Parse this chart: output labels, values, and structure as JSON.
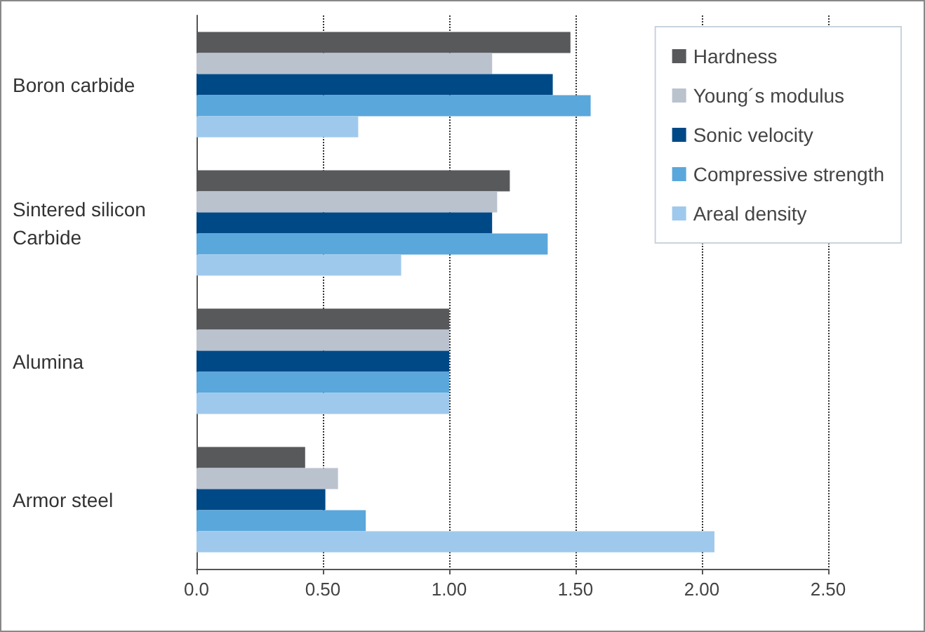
{
  "chart_data": {
    "type": "bar",
    "orientation": "horizontal",
    "categories": [
      "Boron carbide",
      "Sintered silicon Carbide",
      "Alumina",
      "Armor steel"
    ],
    "series": [
      {
        "name": "Hardness",
        "color": "#58595b",
        "values": [
          1.48,
          1.24,
          1.0,
          0.43
        ]
      },
      {
        "name": "Young´s modulus",
        "color": "#bac2ce",
        "values": [
          1.17,
          1.19,
          1.0,
          0.56
        ]
      },
      {
        "name": "Sonic velocity",
        "color": "#004987",
        "values": [
          1.41,
          1.17,
          1.0,
          0.51
        ]
      },
      {
        "name": "Compressive strength",
        "color": "#5aa7db",
        "values": [
          1.56,
          1.39,
          1.0,
          0.67
        ]
      },
      {
        "name": "Areal density",
        "color": "#9fc9ec",
        "values": [
          0.64,
          0.81,
          1.0,
          2.05
        ]
      }
    ],
    "xlim": [
      0,
      2.5
    ],
    "xticks": [
      {
        "value": 0,
        "label": "0.0"
      },
      {
        "value": 0.5,
        "label": "0.50"
      },
      {
        "value": 1,
        "label": "1.00"
      },
      {
        "value": 1.5,
        "label": "1.50"
      },
      {
        "value": 2,
        "label": "2.00"
      },
      {
        "value": 2.5,
        "label": "2.50"
      }
    ],
    "grid": "x",
    "legend": "top right"
  }
}
